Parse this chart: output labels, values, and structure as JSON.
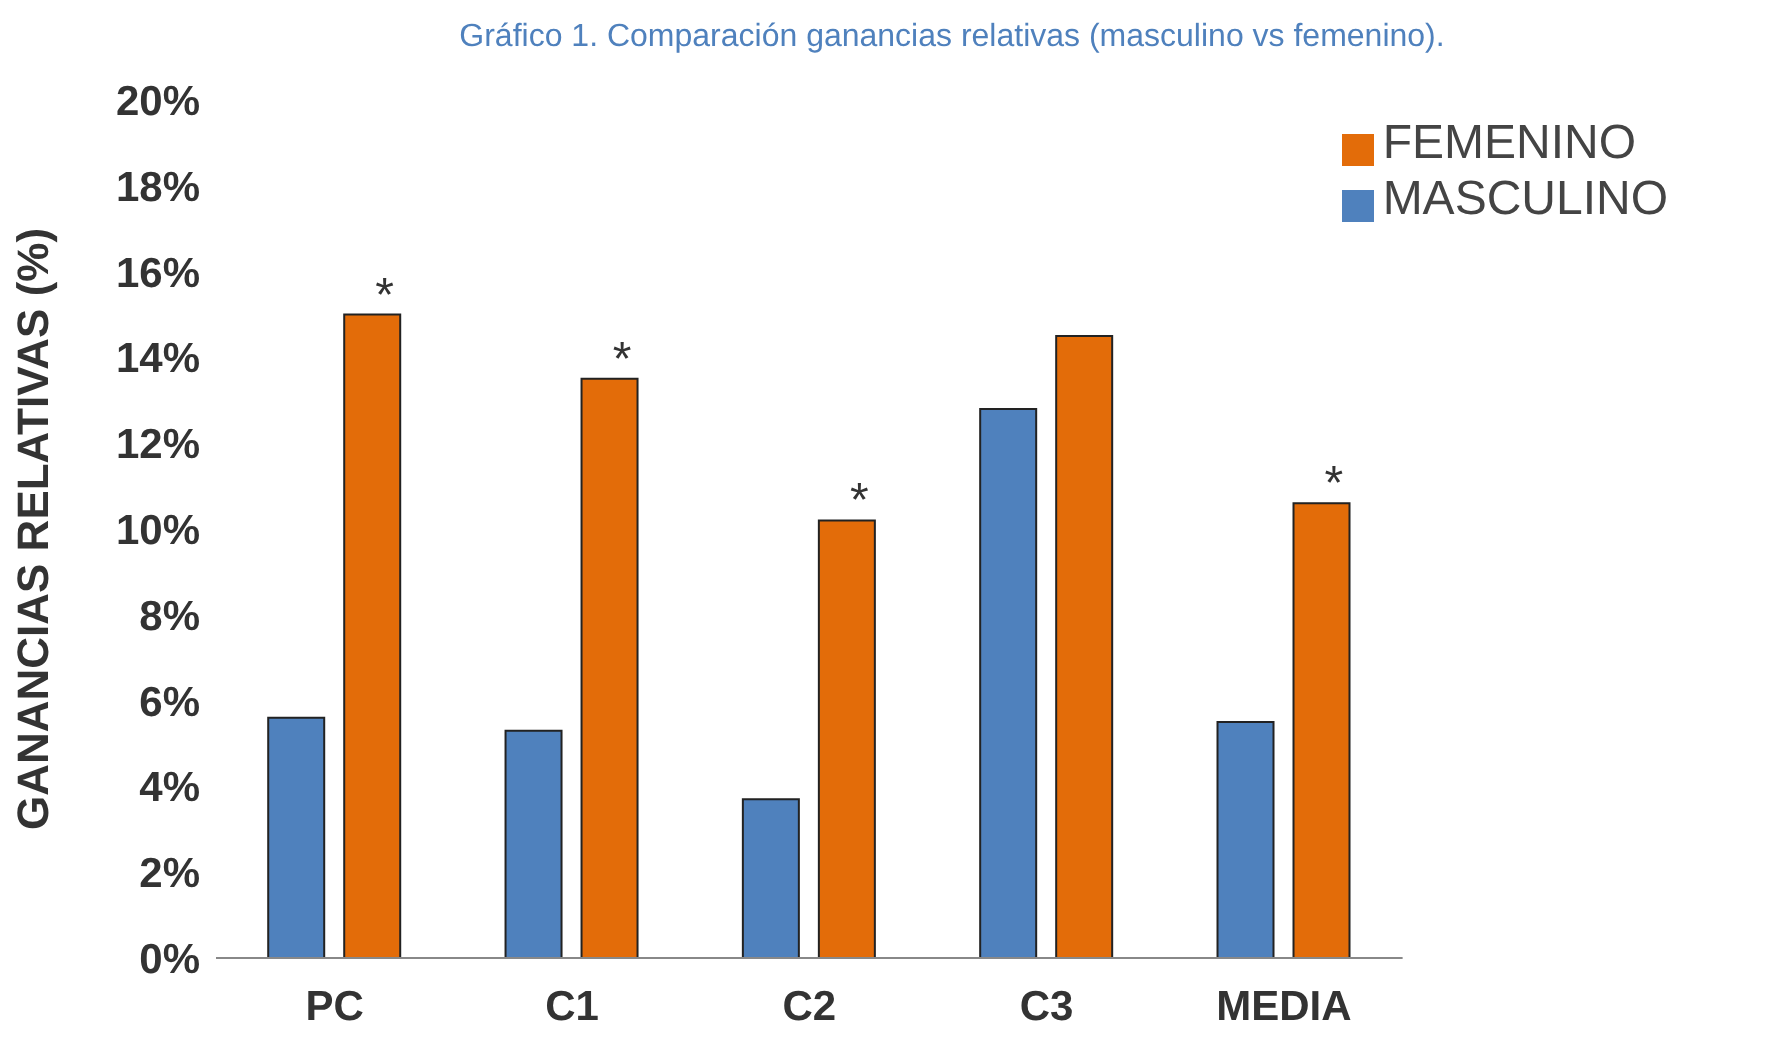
{
  "chart_data": {
    "type": "bar",
    "title": "Gráfico 1. Comparación ganancias relativas (masculino vs femenino).",
    "ylabel": "GANANCIAS RELATIVAS (%)",
    "categories": [
      "PC",
      "C1",
      "C2",
      "C3",
      "MEDIA"
    ],
    "series": [
      {
        "name": "MASCULINO",
        "color": "#4f81bd",
        "values": [
          5.6,
          5.3,
          3.7,
          12.8,
          5.5
        ]
      },
      {
        "name": "FEMENINO",
        "color": "#e36c09",
        "values": [
          15.0,
          13.5,
          10.2,
          14.5,
          10.6
        ]
      }
    ],
    "ylim": [
      0,
      20
    ],
    "yticks": [
      {
        "value": 0,
        "label": "0%"
      },
      {
        "value": 2,
        "label": "2%"
      },
      {
        "value": 4,
        "label": "4%"
      },
      {
        "value": 6,
        "label": "6%"
      },
      {
        "value": 8,
        "label": "8%"
      },
      {
        "value": 10,
        "label": "10%"
      },
      {
        "value": 12,
        "label": "12%"
      },
      {
        "value": 14,
        "label": "14%"
      },
      {
        "value": 16,
        "label": "16%"
      },
      {
        "value": 18,
        "label": "18%"
      },
      {
        "value": 20,
        "label": "20%"
      }
    ],
    "annotations": [
      {
        "text": "*",
        "x": "PC",
        "y": 15.0
      },
      {
        "text": "*",
        "x": "C1",
        "y": 13.5
      },
      {
        "text": "*",
        "x": "C2",
        "y": 10.2
      },
      {
        "text": "*",
        "x": "MEDIA",
        "y": 10.6
      }
    ],
    "grid": false,
    "legend": "top right"
  }
}
